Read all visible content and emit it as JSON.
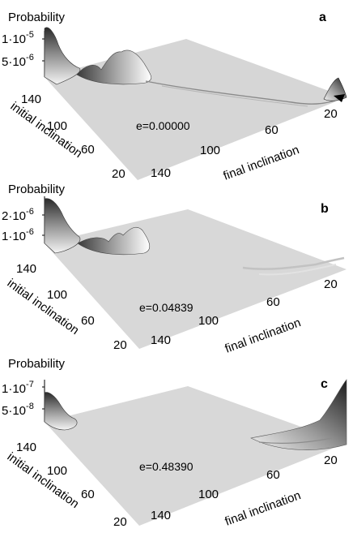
{
  "chart_data": [
    {
      "type": "surface3d",
      "panel": "a",
      "zlabel": "Probability",
      "z_ticks": [
        {
          "mant": "1·10",
          "exp": "-5"
        },
        {
          "mant": "5·10",
          "exp": "-6"
        }
      ],
      "ylabel": "initial inclination",
      "y_ticks": [
        "140",
        "100",
        "60",
        "20"
      ],
      "xlabel": "final inclination",
      "x_ticks": [
        "140",
        "100",
        "60",
        "20"
      ],
      "annotation": "e=0.00000",
      "peak_near_high_initial_inclination": 1e-05,
      "secondary_bump": 6e-06,
      "peak_near_low_final_inclination": 2e-06
    },
    {
      "type": "surface3d",
      "panel": "b",
      "zlabel": "Probability",
      "z_ticks": [
        {
          "mant": "2·10",
          "exp": "-6"
        },
        {
          "mant": "1·10",
          "exp": "-6"
        }
      ],
      "ylabel": "initial inclination",
      "y_ticks": [
        "140",
        "100",
        "60",
        "20"
      ],
      "xlabel": "final inclination",
      "x_ticks": [
        "140",
        "100",
        "60",
        "20"
      ],
      "annotation": "e=0.04839",
      "peak_near_high_initial_inclination": 2.3e-06,
      "secondary_bump": 1.1e-06,
      "peak_near_low_final_inclination": 2e-07
    },
    {
      "type": "surface3d",
      "panel": "c",
      "zlabel": "Probability",
      "z_ticks": [
        {
          "mant": "1·10",
          "exp": "-7"
        },
        {
          "mant": "5·10",
          "exp": "-8"
        }
      ],
      "ylabel": "initial inclination",
      "y_ticks": [
        "140",
        "100",
        "60",
        "20"
      ],
      "xlabel": "final inclination",
      "x_ticks": [
        "140",
        "100",
        "60",
        "20"
      ],
      "annotation": "e=0.48390",
      "peak_near_high_initial_inclination": 8e-08,
      "secondary_bump": 1e-08,
      "peak_near_low_final_inclination": 1.1e-07
    }
  ]
}
